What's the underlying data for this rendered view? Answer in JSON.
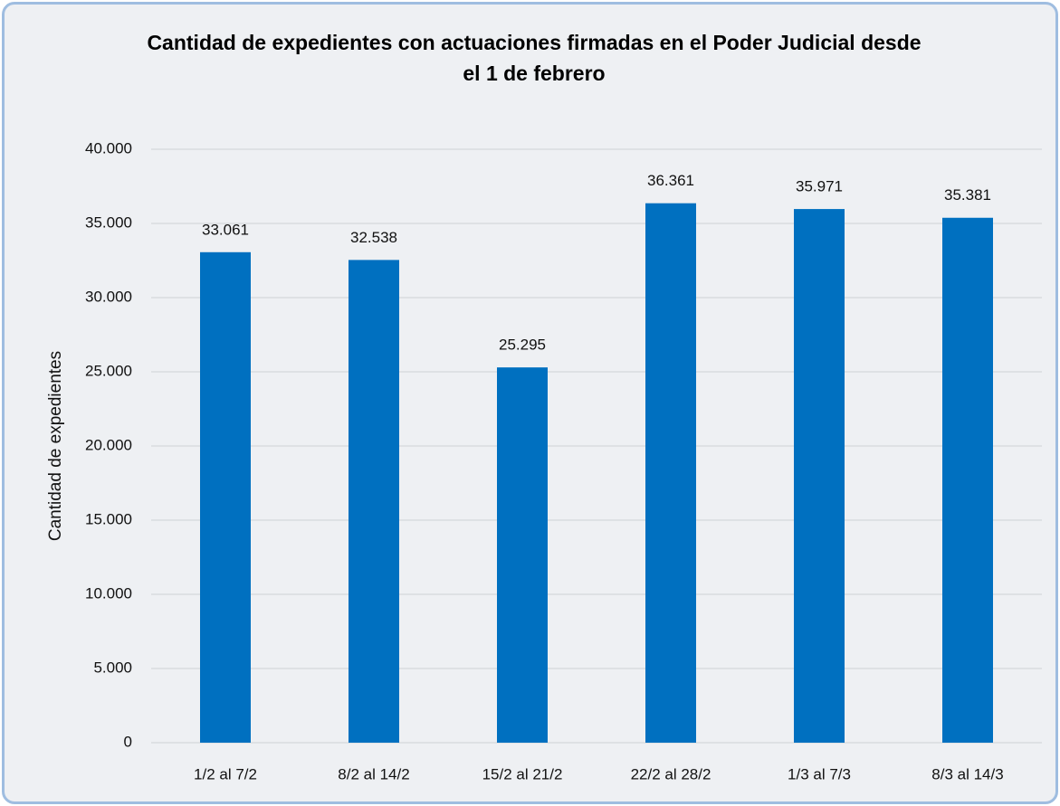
{
  "chart_data": {
    "type": "bar",
    "title": "Cantidad de expedientes con actuaciones firmadas en el Poder Judicial desde el 1 de febrero",
    "y_label": "Cantidad de expedientes",
    "categories": [
      "1/2 al 7/2",
      "8/2 al 14/2",
      "15/2 al 21/2",
      "22/2 al 28/2",
      "1/3 al 7/3",
      "8/3 al 14/3"
    ],
    "values": [
      33061,
      32538,
      25295,
      36361,
      35971,
      35381
    ],
    "value_labels": [
      "33.061",
      "32.538",
      "25.295",
      "36.361",
      "35.971",
      "35.381"
    ],
    "color": "#0070c0",
    "ylim": [
      0,
      40000
    ],
    "yticks": [
      0,
      {
        "value": 5000,
        "label": "5.000"
      },
      {
        "value": 10000,
        "label": "10.000"
      },
      {
        "value": 15000,
        "label": "15.000"
      },
      {
        "value": 20000,
        "label": "20.000"
      },
      {
        "value": 25000,
        "label": "25.000"
      },
      {
        "value": 30000,
        "label": "30.000"
      },
      {
        "value": 35000,
        "label": "35.000"
      },
      {
        "value": 40000,
        "label": "40.000"
      }
    ],
    "grid": true
  }
}
